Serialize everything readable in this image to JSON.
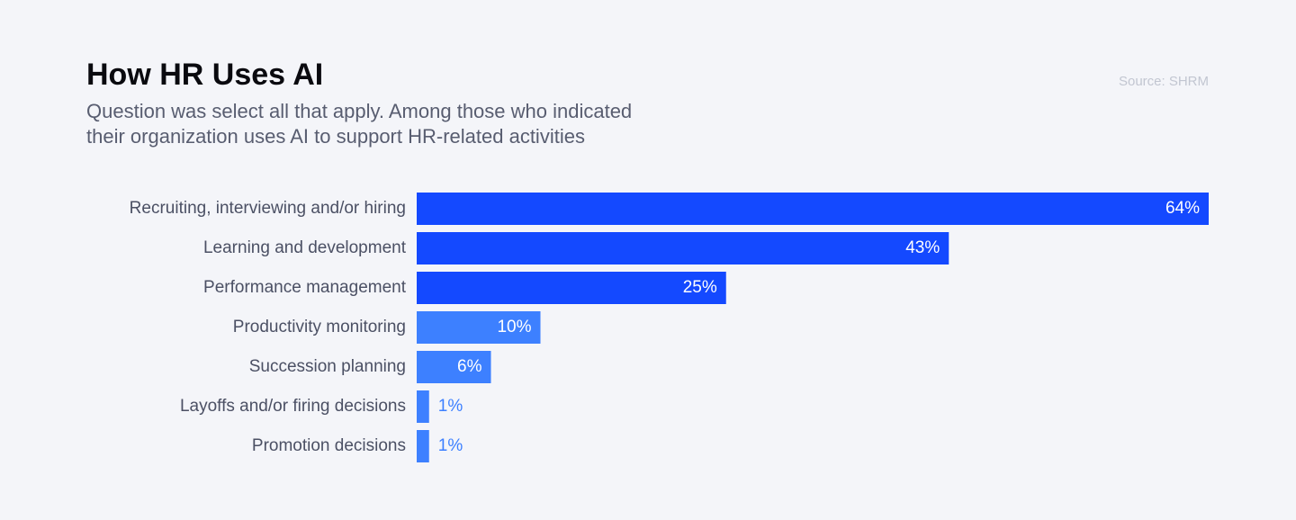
{
  "chart_data": {
    "type": "bar",
    "orientation": "horizontal",
    "title": "How HR Uses AI",
    "subtitle": [
      "Question was select all that apply. Among those who indicated",
      "their organization uses AI to support HR-related activities"
    ],
    "source": "Source: SHRM",
    "categories": [
      "Recruiting, interviewing and/or hiring",
      "Learning and development",
      "Performance management",
      "Productivity monitoring",
      "Succession planning",
      "Layoffs and/or firing decisions",
      "Promotion decisions"
    ],
    "values": [
      64,
      43,
      25,
      10,
      6,
      1,
      1
    ],
    "value_labels": [
      "64%",
      "43%",
      "25%",
      "10%",
      "6%",
      "1%",
      "1%"
    ],
    "colors": [
      "#1449ff",
      "#1449ff",
      "#1449ff",
      "#3d80ff",
      "#3d80ff",
      "#3d80ff",
      "#3d80ff"
    ]
  }
}
